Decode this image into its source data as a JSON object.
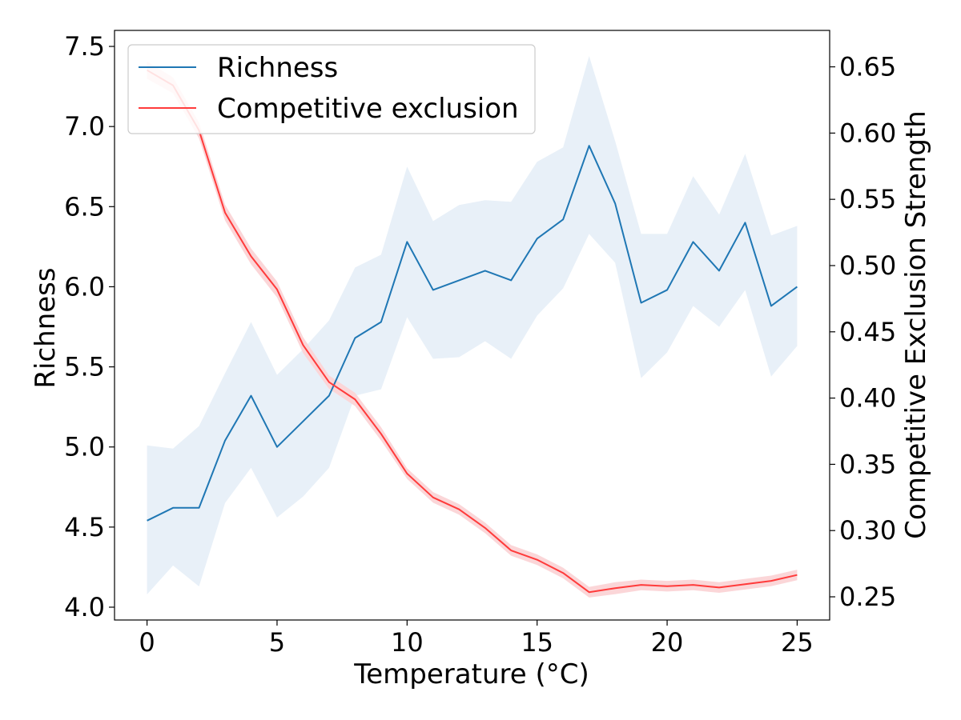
{
  "chart_data": {
    "type": "line",
    "title": "",
    "xlabel": "Temperature (°C)",
    "ylabel": "Richness",
    "y2label": "Competitive Exclusion Strength",
    "xlim": [
      -1.25,
      26.25
    ],
    "ylim": [
      3.92,
      7.6
    ],
    "y2lim": [
      0.2325,
      0.6775
    ],
    "xticks": [
      0,
      5,
      10,
      15,
      20,
      25
    ],
    "yticks": [
      4.0,
      4.5,
      5.0,
      5.5,
      6.0,
      6.5,
      7.0,
      7.5
    ],
    "y2ticks": [
      0.25,
      0.3,
      0.35,
      0.4,
      0.45,
      0.5,
      0.55,
      0.6,
      0.65
    ],
    "legend": {
      "position": "top-left",
      "entries": [
        "Richness",
        "Competitive exclusion"
      ]
    },
    "x": [
      0,
      1,
      2,
      3,
      4,
      5,
      6,
      7,
      8,
      9,
      10,
      11,
      12,
      13,
      14,
      15,
      16,
      17,
      18,
      19,
      20,
      21,
      22,
      23,
      24,
      25
    ],
    "series": [
      {
        "name": "Richness",
        "axis": "left",
        "color": "#1f77b4",
        "band_color": "#e8f0f8",
        "values": [
          4.54,
          4.62,
          4.62,
          5.04,
          5.32,
          5.0,
          5.16,
          5.32,
          5.68,
          5.78,
          6.28,
          5.98,
          6.04,
          6.1,
          6.04,
          6.3,
          6.42,
          6.88,
          6.52,
          5.9,
          5.98,
          6.28,
          6.1,
          6.4,
          5.88,
          6.0
        ],
        "lower": [
          4.08,
          4.26,
          4.13,
          4.65,
          4.87,
          4.56,
          4.69,
          4.87,
          5.32,
          5.36,
          5.81,
          5.55,
          5.56,
          5.66,
          5.55,
          5.82,
          5.99,
          6.33,
          6.15,
          5.43,
          5.59,
          5.88,
          5.75,
          5.98,
          5.44,
          5.63
        ],
        "upper": [
          5.01,
          4.99,
          5.13,
          5.46,
          5.78,
          5.45,
          5.61,
          5.79,
          6.12,
          6.2,
          6.75,
          6.41,
          6.51,
          6.54,
          6.53,
          6.78,
          6.87,
          7.44,
          6.91,
          6.33,
          6.33,
          6.69,
          6.45,
          6.83,
          6.32,
          6.38
        ]
      },
      {
        "name": "Competitive exclusion",
        "axis": "right",
        "color": "#ff3b3b",
        "band_color": "#fbd6d8",
        "values": [
          0.6475,
          0.636,
          0.602,
          0.54,
          0.507,
          0.482,
          0.44,
          0.412,
          0.399,
          0.373,
          0.343,
          0.325,
          0.316,
          0.302,
          0.285,
          0.278,
          0.268,
          0.2535,
          0.2565,
          0.259,
          0.258,
          0.259,
          0.257,
          0.2595,
          0.262,
          0.2665
        ],
        "lower": [
          0.641,
          0.63,
          0.596,
          0.534,
          0.501,
          0.476,
          0.434,
          0.407,
          0.394,
          0.368,
          0.339,
          0.321,
          0.312,
          0.298,
          0.281,
          0.274,
          0.264,
          0.2495,
          0.252,
          0.255,
          0.254,
          0.255,
          0.253,
          0.2555,
          0.258,
          0.2625
        ],
        "upper": [
          0.654,
          0.642,
          0.608,
          0.546,
          0.513,
          0.488,
          0.446,
          0.417,
          0.404,
          0.378,
          0.347,
          0.329,
          0.32,
          0.306,
          0.289,
          0.282,
          0.272,
          0.2575,
          0.261,
          0.263,
          0.262,
          0.263,
          0.261,
          0.2635,
          0.266,
          0.2705
        ]
      }
    ]
  }
}
